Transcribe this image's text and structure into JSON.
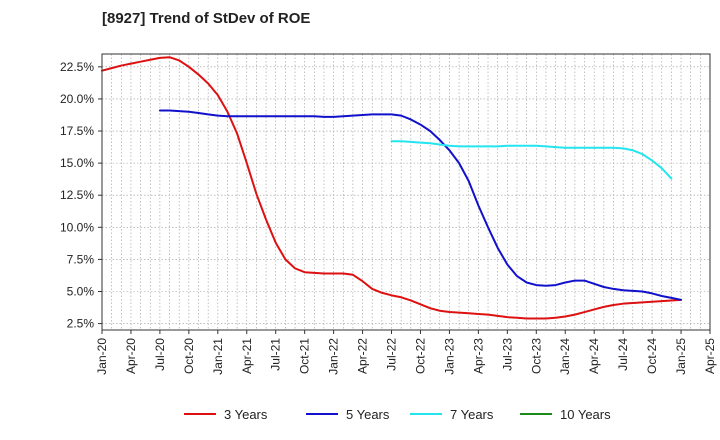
{
  "chart_data": {
    "type": "line",
    "title": "[8927]  Trend of StDev of ROE",
    "xlabel": "",
    "ylabel": "",
    "x_ticks": [
      "Jan-20",
      "Apr-20",
      "Jul-20",
      "Oct-20",
      "Jan-21",
      "Apr-21",
      "Jul-21",
      "Oct-21",
      "Jan-22",
      "Apr-22",
      "Jul-22",
      "Oct-22",
      "Jan-23",
      "Apr-23",
      "Jul-23",
      "Oct-23",
      "Jan-24",
      "Apr-24",
      "Jul-24",
      "Oct-24",
      "Jan-25",
      "Apr-25"
    ],
    "y_ticks": [
      "2.5%",
      "5.0%",
      "7.5%",
      "10.0%",
      "12.5%",
      "15.0%",
      "17.5%",
      "20.0%",
      "22.5%"
    ],
    "ylim": [
      2.0,
      23.5
    ],
    "grid": true,
    "legend_position": "bottom",
    "series": [
      {
        "name": "3 Years",
        "color": "#dd1111",
        "points": [
          [
            "Jan-20",
            22.2
          ],
          [
            "Feb-20",
            22.4
          ],
          [
            "Mar-20",
            22.6
          ],
          [
            "Apr-20",
            22.75
          ],
          [
            "May-20",
            22.9
          ],
          [
            "Jun-20",
            23.05
          ],
          [
            "Jul-20",
            23.2
          ],
          [
            "Aug-20",
            23.25
          ],
          [
            "Sep-20",
            23.0
          ],
          [
            "Oct-20",
            22.5
          ],
          [
            "Nov-20",
            21.9
          ],
          [
            "Dec-20",
            21.2
          ],
          [
            "Jan-21",
            20.3
          ],
          [
            "Feb-21",
            19.0
          ],
          [
            "Mar-21",
            17.3
          ],
          [
            "Apr-21",
            15.0
          ],
          [
            "May-21",
            12.6
          ],
          [
            "Jun-21",
            10.6
          ],
          [
            "Jul-21",
            8.8
          ],
          [
            "Aug-21",
            7.5
          ],
          [
            "Sep-21",
            6.8
          ],
          [
            "Oct-21",
            6.5
          ],
          [
            "Nov-21",
            6.45
          ],
          [
            "Dec-21",
            6.4
          ],
          [
            "Jan-22",
            6.4
          ],
          [
            "Feb-22",
            6.4
          ],
          [
            "Mar-22",
            6.3
          ],
          [
            "Apr-22",
            5.8
          ],
          [
            "May-22",
            5.2
          ],
          [
            "Jun-22",
            4.9
          ],
          [
            "Jul-22",
            4.7
          ],
          [
            "Aug-22",
            4.55
          ],
          [
            "Sep-22",
            4.3
          ],
          [
            "Oct-22",
            4.0
          ],
          [
            "Nov-22",
            3.7
          ],
          [
            "Dec-22",
            3.5
          ],
          [
            "Jan-23",
            3.4
          ],
          [
            "Feb-23",
            3.35
          ],
          [
            "Mar-23",
            3.3
          ],
          [
            "Apr-23",
            3.25
          ],
          [
            "May-23",
            3.2
          ],
          [
            "Jun-23",
            3.1
          ],
          [
            "Jul-23",
            3.0
          ],
          [
            "Aug-23",
            2.95
          ],
          [
            "Sep-23",
            2.9
          ],
          [
            "Oct-23",
            2.9
          ],
          [
            "Nov-23",
            2.9
          ],
          [
            "Dec-23",
            2.95
          ],
          [
            "Jan-24",
            3.05
          ],
          [
            "Feb-24",
            3.2
          ],
          [
            "Mar-24",
            3.4
          ],
          [
            "Apr-24",
            3.6
          ],
          [
            "May-24",
            3.8
          ],
          [
            "Jun-24",
            3.95
          ],
          [
            "Jul-24",
            4.05
          ],
          [
            "Aug-24",
            4.1
          ],
          [
            "Sep-24",
            4.15
          ],
          [
            "Oct-24",
            4.2
          ],
          [
            "Nov-24",
            4.25
          ],
          [
            "Dec-24",
            4.3
          ],
          [
            "Jan-25",
            4.35
          ]
        ]
      },
      {
        "name": "5 Years",
        "color": "#1111cc",
        "points": [
          [
            "Jul-20",
            19.1
          ],
          [
            "Aug-20",
            19.1
          ],
          [
            "Sep-20",
            19.05
          ],
          [
            "Oct-20",
            19.0
          ],
          [
            "Nov-20",
            18.9
          ],
          [
            "Dec-20",
            18.8
          ],
          [
            "Jan-21",
            18.7
          ],
          [
            "Feb-21",
            18.65
          ],
          [
            "Mar-21",
            18.65
          ],
          [
            "Apr-21",
            18.65
          ],
          [
            "May-21",
            18.65
          ],
          [
            "Jun-21",
            18.65
          ],
          [
            "Jul-21",
            18.65
          ],
          [
            "Aug-21",
            18.65
          ],
          [
            "Sep-21",
            18.65
          ],
          [
            "Oct-21",
            18.65
          ],
          [
            "Nov-21",
            18.65
          ],
          [
            "Dec-21",
            18.6
          ],
          [
            "Jan-22",
            18.6
          ],
          [
            "Feb-22",
            18.65
          ],
          [
            "Mar-22",
            18.7
          ],
          [
            "Apr-22",
            18.75
          ],
          [
            "May-22",
            18.8
          ],
          [
            "Jun-22",
            18.8
          ],
          [
            "Jul-22",
            18.8
          ],
          [
            "Aug-22",
            18.7
          ],
          [
            "Sep-22",
            18.4
          ],
          [
            "Oct-22",
            18.0
          ],
          [
            "Nov-22",
            17.5
          ],
          [
            "Dec-22",
            16.8
          ],
          [
            "Jan-23",
            16.0
          ],
          [
            "Feb-23",
            15.0
          ],
          [
            "Mar-23",
            13.6
          ],
          [
            "Apr-23",
            11.7
          ],
          [
            "May-23",
            10.0
          ],
          [
            "Jun-23",
            8.4
          ],
          [
            "Jul-23",
            7.1
          ],
          [
            "Aug-23",
            6.2
          ],
          [
            "Sep-23",
            5.7
          ],
          [
            "Oct-23",
            5.5
          ],
          [
            "Nov-23",
            5.45
          ],
          [
            "Dec-23",
            5.5
          ],
          [
            "Jan-24",
            5.7
          ],
          [
            "Feb-24",
            5.85
          ],
          [
            "Mar-24",
            5.85
          ],
          [
            "Apr-24",
            5.6
          ],
          [
            "May-24",
            5.35
          ],
          [
            "Jun-24",
            5.2
          ],
          [
            "Jul-24",
            5.1
          ],
          [
            "Aug-24",
            5.05
          ],
          [
            "Sep-24",
            5.0
          ],
          [
            "Oct-24",
            4.85
          ],
          [
            "Nov-24",
            4.65
          ],
          [
            "Dec-24",
            4.5
          ],
          [
            "Jan-25",
            4.35
          ]
        ]
      },
      {
        "name": "7 Years",
        "color": "#22e5f0",
        "points": [
          [
            "Jul-22",
            16.7
          ],
          [
            "Aug-22",
            16.7
          ],
          [
            "Sep-22",
            16.65
          ],
          [
            "Oct-22",
            16.6
          ],
          [
            "Nov-22",
            16.55
          ],
          [
            "Dec-22",
            16.45
          ],
          [
            "Jan-23",
            16.35
          ],
          [
            "Feb-23",
            16.3
          ],
          [
            "Mar-23",
            16.3
          ],
          [
            "Apr-23",
            16.3
          ],
          [
            "May-23",
            16.3
          ],
          [
            "Jun-23",
            16.3
          ],
          [
            "Jul-23",
            16.35
          ],
          [
            "Aug-23",
            16.35
          ],
          [
            "Sep-23",
            16.35
          ],
          [
            "Oct-23",
            16.35
          ],
          [
            "Nov-23",
            16.3
          ],
          [
            "Dec-23",
            16.25
          ],
          [
            "Jan-24",
            16.2
          ],
          [
            "Feb-24",
            16.2
          ],
          [
            "Mar-24",
            16.2
          ],
          [
            "Apr-24",
            16.2
          ],
          [
            "May-24",
            16.2
          ],
          [
            "Jun-24",
            16.2
          ],
          [
            "Jul-24",
            16.15
          ],
          [
            "Aug-24",
            16.0
          ],
          [
            "Sep-24",
            15.7
          ],
          [
            "Oct-24",
            15.2
          ],
          [
            "Nov-24",
            14.6
          ],
          [
            "Dec-24",
            13.8
          ]
        ]
      },
      {
        "name": "10 Years",
        "color": "#1a8a1a",
        "points": []
      }
    ]
  }
}
